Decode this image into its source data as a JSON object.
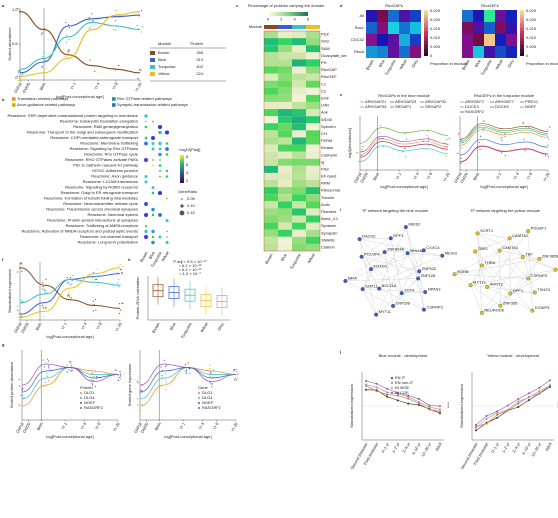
{
  "shared": {
    "age_ticks": [
      "GW18",
      "GW20",
      "Birth",
      "Yr 1",
      "Yr 4",
      "Yr 8",
      "Yr 20"
    ],
    "age_label": "log[Post-conceptional age]",
    "modules": [
      "Brown",
      "Blue",
      "Turquoise",
      "Yellow",
      "Grey"
    ]
  },
  "panel_a": {
    "letter": "a",
    "ylabel": "Scaled abundance",
    "yticks": [
      "1.0",
      "0.5",
      "0"
    ],
    "table_header": [
      "Module",
      "Protein"
    ],
    "table_rows": [
      [
        "Brown",
        "265"
      ],
      [
        "Blue",
        "313"
      ],
      [
        "Turquoise",
        "402"
      ],
      [
        "Yellow",
        "224"
      ]
    ]
  },
  "panel_b": {
    "letter": "b",
    "legend": [
      {
        "name": "Translation-related pathways",
        "color": "#e8902a"
      },
      {
        "name": "Rho GTPase-related pathways",
        "color": "#2a8f8f"
      },
      {
        "name": "Axon-guidance-related pathways",
        "color": "#c9b400"
      },
      {
        "name": "Synaptic-transmission-related pathways",
        "color": "#2f6fd0"
      }
    ],
    "pathways": [
      {
        "name": "Reactome: SRP-dependent cotranslational protein targeting to membrane",
        "color": "#e8902a"
      },
      {
        "name": "Reactome: Eukaryotic translation elongation",
        "color": "#e8902a"
      },
      {
        "name": "Reactome: RAB geranylgeranylation",
        "color": "#222222"
      },
      {
        "name": "Reactome: Transport to the Golgi and subsequent modification",
        "color": "#222222"
      },
      {
        "name": "Reactome: COPI-mediated anterograde transport",
        "color": "#222222"
      },
      {
        "name": "Reactome: Membrane trafficking",
        "color": "#222222"
      },
      {
        "name": "Reactome: Signaling by Rho GTPases",
        "color": "#2a8f8f"
      },
      {
        "name": "Reactome: Rho GTPase cycle",
        "color": "#2a8f8f"
      },
      {
        "name": "Reactome: RHO GTPases activate PAKs",
        "color": "#2a8f8f"
      },
      {
        "name": "PID: E-cadherin nascent AJ pathway",
        "color": "#222222"
      },
      {
        "name": "KEGG: Adherens junction",
        "color": "#222222"
      },
      {
        "name": "Reactome: Axon guidance",
        "color": "#c9b400"
      },
      {
        "name": "Reactome: L1CAM interactions",
        "color": "#c9b400"
      },
      {
        "name": "Reactome: Signaling by ROBO receptors",
        "color": "#c9b400"
      },
      {
        "name": "Reactome: Golgi to ER retrograde transport",
        "color": "#222222"
      },
      {
        "name": "Reactome: Formation of tubulin folding intermediates",
        "color": "#222222"
      },
      {
        "name": "Reactome: Neurotransmitter release cycle",
        "color": "#2f6fd0"
      },
      {
        "name": "Reactome: Transmission across chemical synapses",
        "color": "#2f6fd0"
      },
      {
        "name": "Reactome: Neuronal system",
        "color": "#2f6fd0"
      },
      {
        "name": "Reactome: Protein-protein interactions at synapses",
        "color": "#2f6fd0"
      },
      {
        "name": "Reactome: Trafficking of AMPA receptors",
        "color": "#2f6fd0"
      },
      {
        "name": "Reactome: Activation of NMDA receptors and postsynaptic events",
        "color": "#2f6fd0"
      },
      {
        "name": "Reactome: Ion channel transport",
        "color": "#222222"
      },
      {
        "name": "Reactome: Long-term potentiation",
        "color": "#2f6fd0"
      }
    ],
    "scale_title": "−log10[Padj]",
    "scale_ticks": [
      "8",
      "6",
      "4",
      "2"
    ],
    "size_title": "GeneRatio",
    "size_ticks": [
      "0.05",
      "0.10",
      "0.15"
    ]
  },
  "panel_c": {
    "letter": "c",
    "title": "Percentage of proteins carrying the domain",
    "scale_ticks": [
      "0",
      "2",
      "4",
      "6"
    ],
    "row_title": "Module",
    "domains": [
      "PDZ",
      "SH3",
      "SAM",
      "Guanylate_kin",
      "PH",
      "RhoGAP",
      "RhoGEF",
      "C1",
      "C2",
      "EGF",
      "LRR",
      "Ank",
      "WD40",
      "Spectrin",
      "CH",
      "FERM",
      "Kinase",
      "Cadherin",
      "Ig",
      "FN3",
      "EF-hand",
      "RRM",
      "Ribosomal",
      "Tubulin",
      "Actin",
      "Filament",
      "Band_4.1",
      "Syntaxin",
      "Synapsin",
      "SNARE",
      "Clathrin"
    ]
  },
  "panel_d": {
    "letter": "d",
    "titles": [
      "RhoGAPs",
      "RhoGEFs"
    ],
    "rows": [
      "All",
      "Rac1",
      "CDC42",
      "RhoA"
    ],
    "scale_title": "Proportion in module",
    "scale_ticks": [
      "0.025",
      "0.020",
      "0.015",
      "0.010",
      "0.005",
      "0"
    ]
  },
  "panel_e": {
    "letter": "e",
    "titles": [
      "RhoGAPs in the blue module",
      "RhoGEFs in the turquoise module"
    ],
    "ylabel": "log2[Abundance]",
    "genes_left": [
      "ARHGAP21",
      "ARHGAP23",
      "ARHGAP32",
      "ARHGAP33",
      "SRGAP1",
      "SRGAP2"
    ],
    "genes_right": [
      "ARHGEF2",
      "ARHGEF7",
      "PREX1",
      "DOCK3",
      "DOCK9",
      "NGEF",
      "RASGRF2"
    ]
  },
  "panel_f": {
    "letter": "f",
    "ylabel": "Standardized expression"
  },
  "panel_g": {
    "letter": "g",
    "ylabel_left": "Scaled protein abundance",
    "ylabel_right": "Scaled gene expression",
    "legend_left_title": "Protein",
    "legend_right_title": "Gene",
    "genes": [
      "DLG1",
      "DLG4",
      "NGEF",
      "RASGRF2"
    ]
  },
  "panel_h": {
    "letter": "h",
    "ylabel": "Protein–RNA correlation",
    "pvalues": [
      "P adj < 9.5 × 10⁻¹⁰",
      "< 6.2 × 10⁻¹²",
      "< 6.3 × 10⁻¹²",
      "< 1.2 × 10⁻⁷"
    ]
  },
  "panel_i": {
    "letter": "i",
    "titles": [
      "TF network targeting the blue module",
      "TF network targeting the yellow module"
    ],
    "nodes_blue": [
      "ZNF428",
      "NPAS3",
      "CSRNP3",
      "TCF4",
      "ZNF536",
      "MYT1L",
      "BCL11A",
      "SOX11",
      "NFIA",
      "FOXG1",
      "POU3F4",
      "DACH2",
      "ZNF804A",
      "DPF1",
      "MEIS2",
      "NHLH2",
      "CXXC4",
      "MEIS3",
      "ZNF532"
    ],
    "nodes_yellow": [
      "CSRNP3",
      "TSHZ3",
      "KCNIP3",
      "DPF1",
      "ZNF365",
      "NEUROD6",
      "ARNT2",
      "MYT1L",
      "RORB",
      "THRA",
      "TBR1",
      "SCRT1",
      "CAMTA1",
      "CAMTA2",
      "POU6F1",
      "TEF",
      "ZNF385B",
      "ZNF540"
    ]
  },
  "panel_j": {
    "letter": "j",
    "titles": [
      "Blue module - development",
      "Yellow module - development"
    ],
    "ylabel": "Standardized expression",
    "legend": [
      {
        "name": "EN IT",
        "color": "#333333"
      },
      {
        "name": "EN non-IT",
        "color": "#e0702a"
      },
      {
        "name": "IN MGE",
        "color": "#8aa0b8"
      },
      {
        "name": "IN CGE",
        "color": "#a050b0"
      }
    ],
    "stages": [
      "Second trimester",
      "Third trimester",
      "0–1 yr",
      "1–2 yr",
      "2–4 yr",
      "4–10 yr",
      "10–20 yr",
      "Adult"
    ],
    "stars": "****"
  }
}
